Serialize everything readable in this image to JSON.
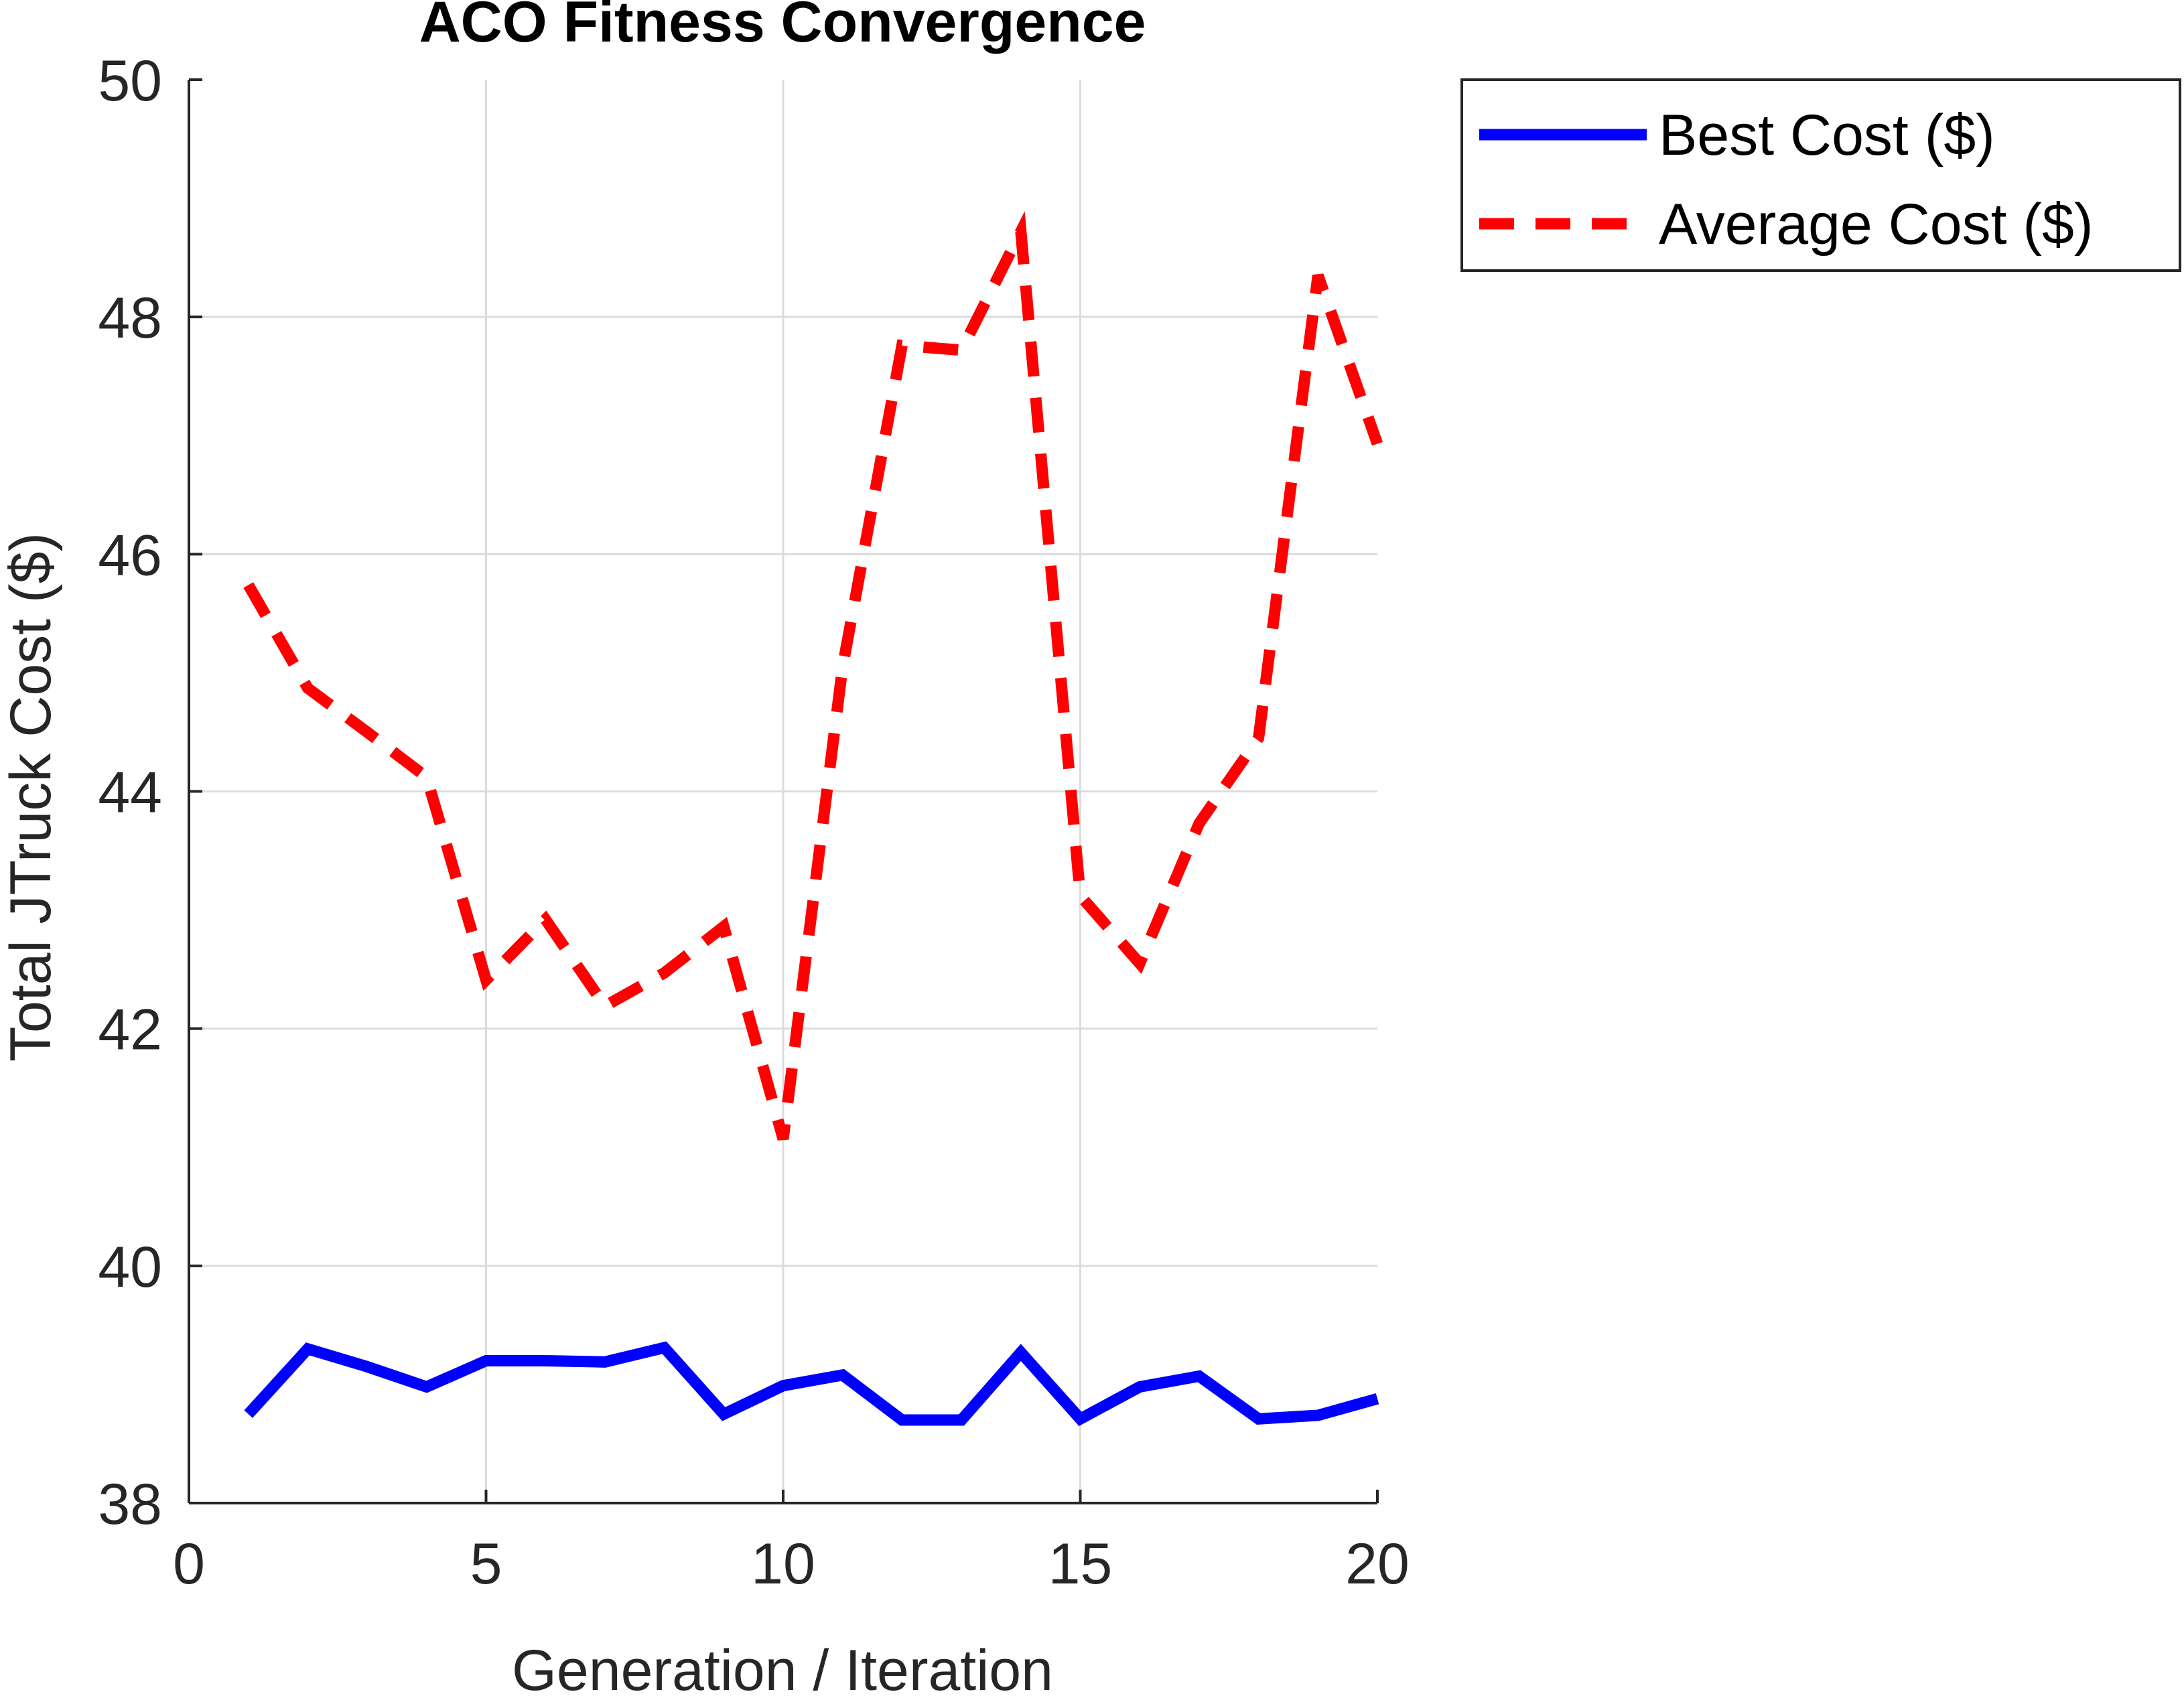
{
  "chart_data": {
    "type": "line",
    "title": "ACO Fitness Convergence",
    "xlabel": "Generation / Iteration",
    "ylabel": "Total JTruck Cost ($)",
    "xlim": [
      0,
      20
    ],
    "ylim": [
      38,
      50
    ],
    "xticks": [
      0,
      5,
      10,
      15,
      20
    ],
    "yticks": [
      38,
      40,
      42,
      44,
      46,
      48,
      50
    ],
    "grid": true,
    "legend_position": "outside-top-right",
    "x": [
      1,
      2,
      3,
      4,
      5,
      6,
      7,
      8,
      9,
      10,
      11,
      12,
      13,
      14,
      15,
      16,
      17,
      18,
      19,
      20
    ],
    "series": [
      {
        "name": "Best Cost ($)",
        "color": "#0000ff",
        "style": "solid",
        "values": [
          38.75,
          39.3,
          39.15,
          38.98,
          39.2,
          39.2,
          39.19,
          39.31,
          38.75,
          38.99,
          39.08,
          38.7,
          38.7,
          39.27,
          38.71,
          38.98,
          39.07,
          38.71,
          38.74,
          38.88
        ]
      },
      {
        "name": "Average Cost ($)",
        "color": "#ff0000",
        "style": "dashed",
        "values": [
          45.74,
          44.87,
          44.5,
          44.12,
          42.41,
          42.92,
          42.19,
          42.47,
          42.86,
          41.07,
          45.05,
          47.76,
          47.72,
          48.72,
          43.12,
          42.55,
          43.73,
          44.45,
          48.35,
          46.93
        ]
      }
    ]
  }
}
